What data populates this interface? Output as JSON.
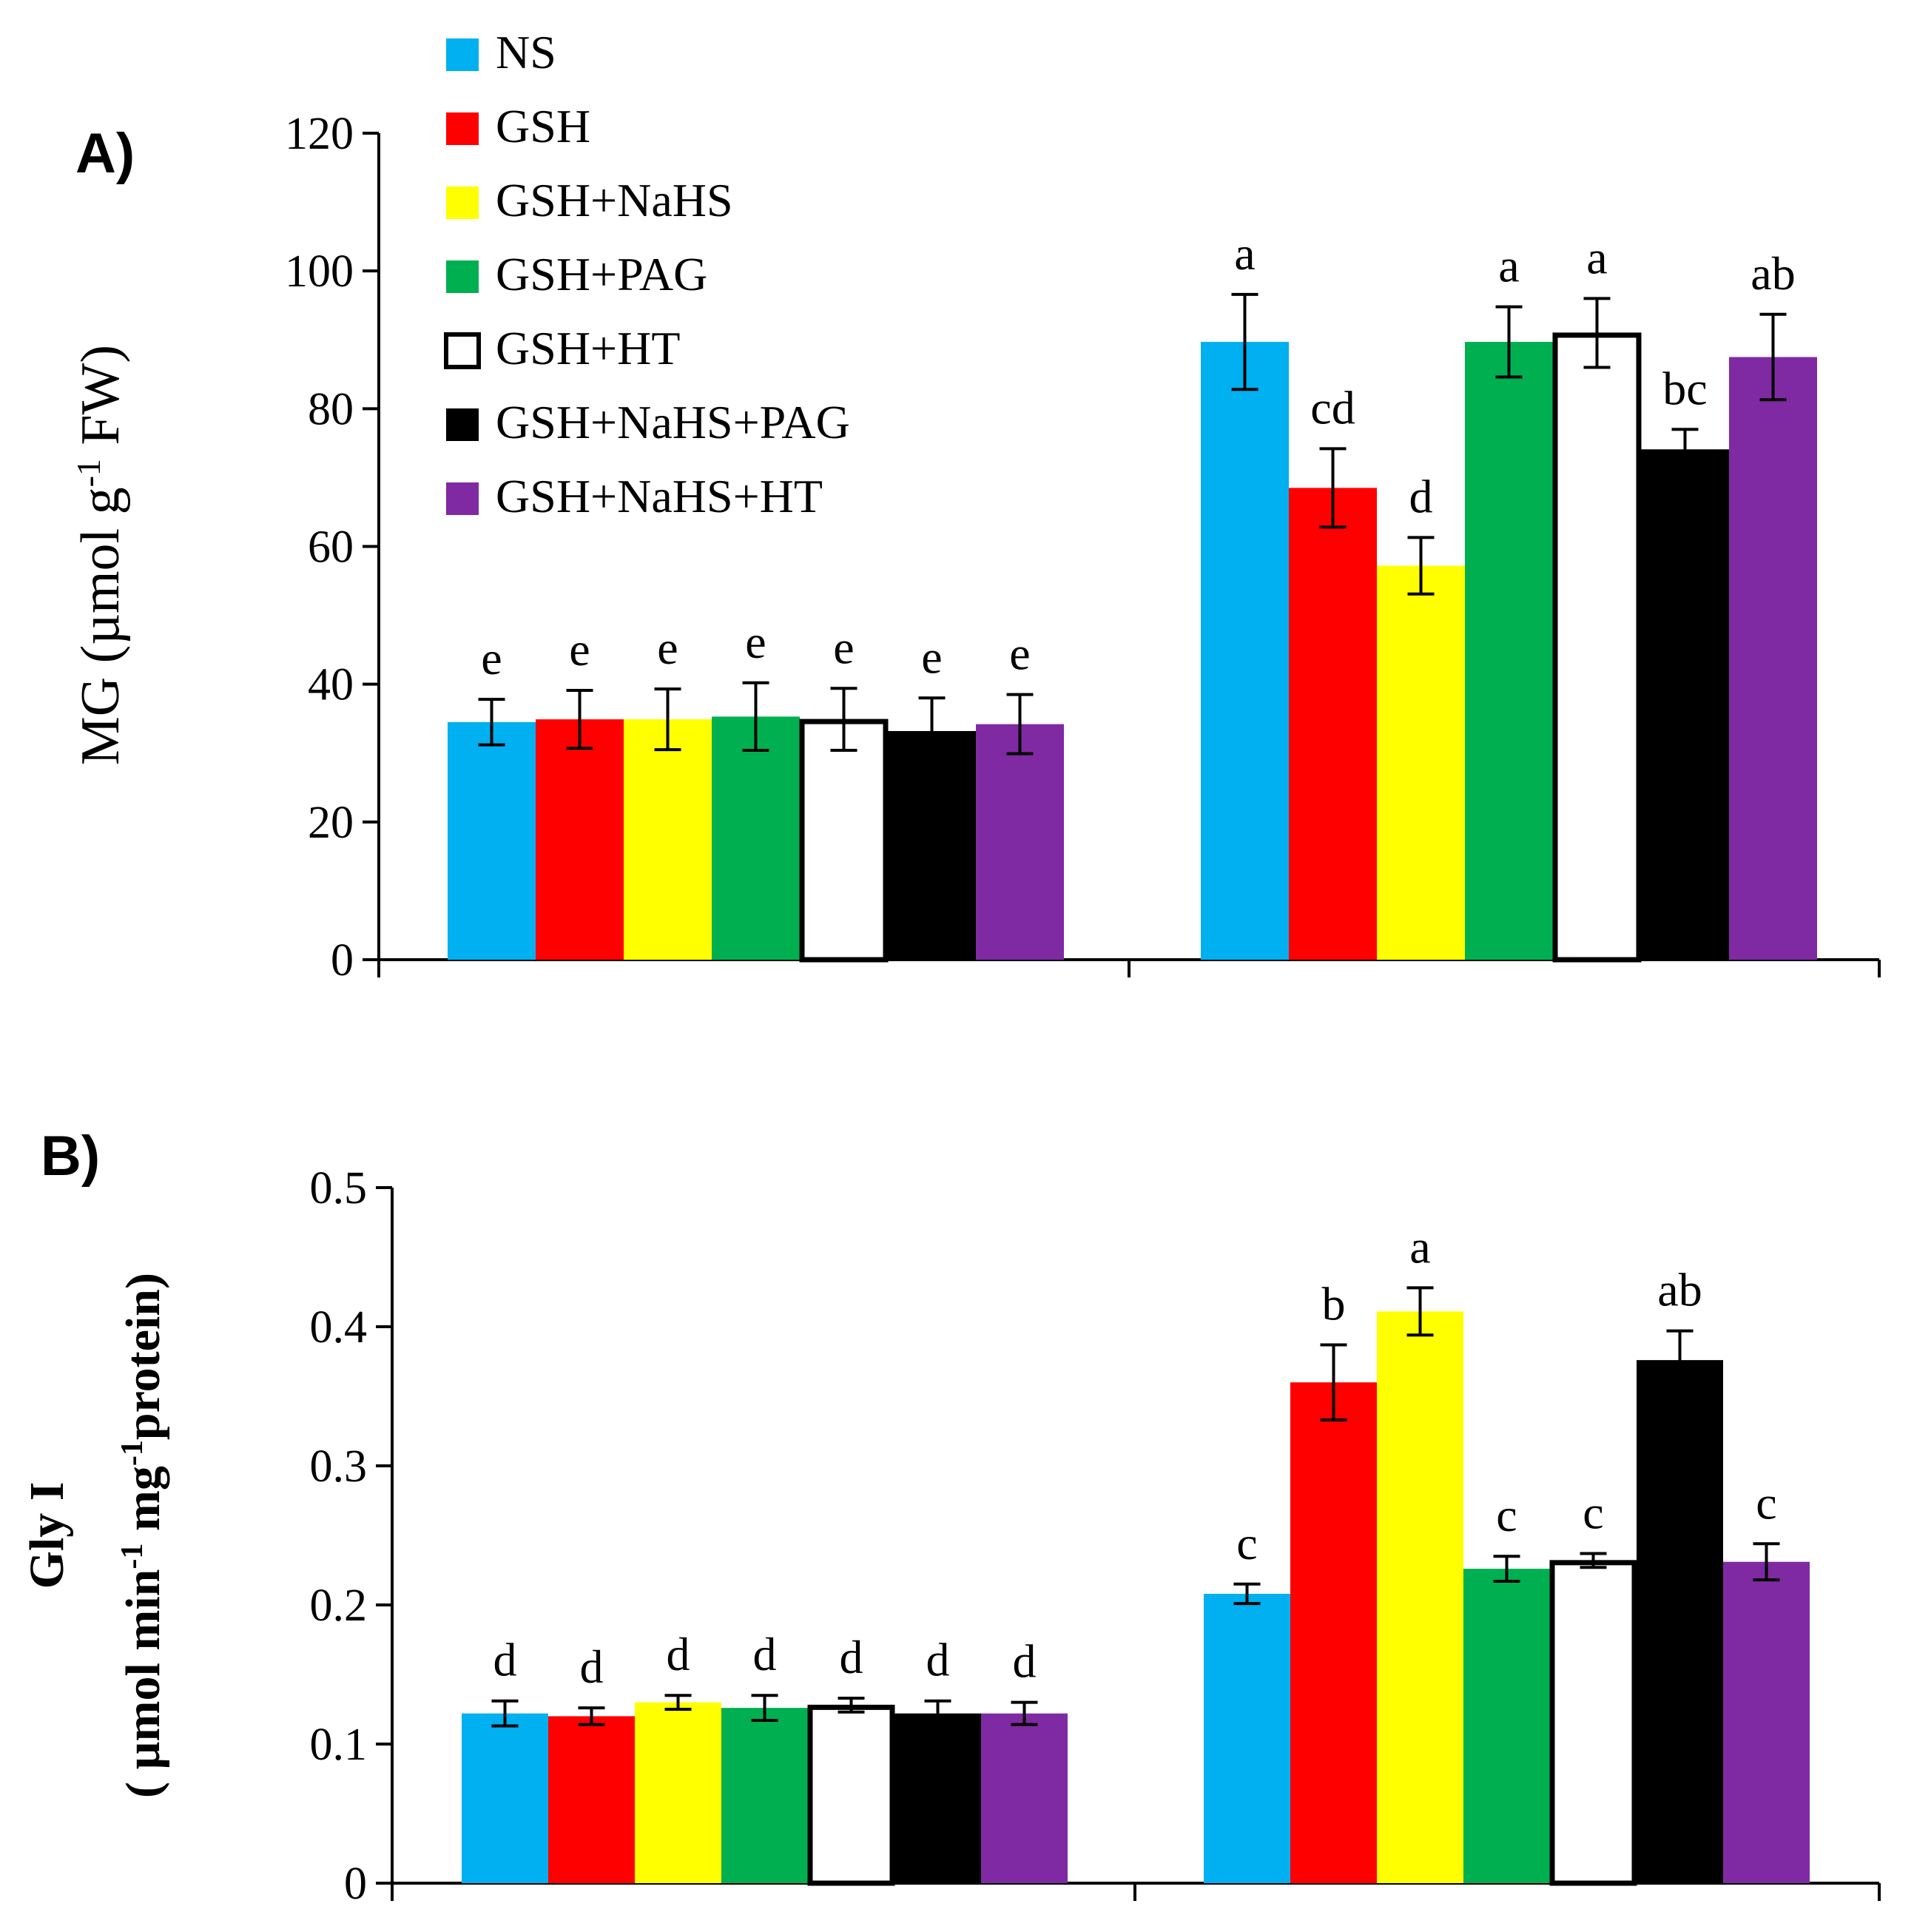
{
  "legend": [
    {
      "name": "NS",
      "color": "#00B0F0"
    },
    {
      "name": "GSH",
      "color": "#FF0000"
    },
    {
      "name": "GSH+NaHS",
      "color": "#FFFF00"
    },
    {
      "name": "GSH+PAG",
      "color": "#00B050"
    },
    {
      "name": "GSH+HT",
      "color": "#FFFFFF"
    },
    {
      "name": "GSH+NaHS+PAG",
      "color": "#000000"
    },
    {
      "name": "GSH+NaHS+HT",
      "color": "#7F2AA2"
    }
  ],
  "chart_data": [
    {
      "type": "bar",
      "panel_label": "A)",
      "title": "",
      "ylabel": "MG (µmol g-1 FW)",
      "ylabel_parts": {
        "pre": "MG (µmol g",
        "sup": "-1",
        "post": " FW)"
      },
      "ylim": [
        0,
        120
      ],
      "yticks": [
        "0",
        "20",
        "40",
        "60",
        "80",
        "100",
        "120"
      ],
      "categories": [
        "",
        ""
      ],
      "series": [
        {
          "name": "NS",
          "values": [
            34.5,
            89.7
          ],
          "errors": [
            3.3,
            6.9
          ],
          "letters": [
            "e",
            "a"
          ]
        },
        {
          "name": "GSH",
          "values": [
            34.9,
            68.5
          ],
          "errors": [
            4.2,
            5.7
          ],
          "letters": [
            "e",
            "cd"
          ]
        },
        {
          "name": "GSH+NaHS",
          "values": [
            34.9,
            57.2
          ],
          "errors": [
            4.4,
            4.1
          ],
          "letters": [
            "e",
            "d"
          ]
        },
        {
          "name": "GSH+PAG",
          "values": [
            35.3,
            89.7
          ],
          "errors": [
            4.9,
            5.1
          ],
          "letters": [
            "e",
            "a"
          ]
        },
        {
          "name": "GSH+HT",
          "values": [
            34.9,
            91.0
          ],
          "errors": [
            4.5,
            5.0
          ],
          "letters": [
            "e",
            "a"
          ]
        },
        {
          "name": "GSH+NaHS+PAG",
          "values": [
            33.2,
            74.1
          ],
          "errors": [
            4.8,
            2.9
          ],
          "letters": [
            "e",
            "bc"
          ]
        },
        {
          "name": "GSH+NaHS+HT",
          "values": [
            34.2,
            87.5
          ],
          "errors": [
            4.3,
            6.2
          ],
          "letters": [
            "e",
            "ab"
          ]
        }
      ]
    },
    {
      "type": "bar",
      "panel_label": "B)",
      "title": "",
      "ylabel": "Gly I ( µmol min-1 mg-1protein)",
      "ylabel_line1": "Gly I",
      "ylabel_parts": {
        "pre": "( µmol min",
        "sup": "-1",
        "mid": " mg",
        "sup2": "-1",
        "post": "protein)"
      },
      "ylim": [
        0,
        0.5
      ],
      "yticks": [
        "0",
        "0.1",
        "0.2",
        "0.3",
        "0.4",
        "0.5"
      ],
      "categories": [
        "",
        ""
      ],
      "series": [
        {
          "name": "NS",
          "values": [
            0.122,
            0.208
          ],
          "errors": [
            0.009,
            0.007
          ],
          "letters": [
            "d",
            "c"
          ]
        },
        {
          "name": "GSH",
          "values": [
            0.12,
            0.36
          ],
          "errors": [
            0.006,
            0.027
          ],
          "letters": [
            "d",
            "b"
          ]
        },
        {
          "name": "GSH+NaHS",
          "values": [
            0.13,
            0.411
          ],
          "errors": [
            0.005,
            0.017
          ],
          "letters": [
            "d",
            "a"
          ]
        },
        {
          "name": "GSH+PAG",
          "values": [
            0.126,
            0.226
          ],
          "errors": [
            0.009,
            0.009
          ],
          "letters": [
            "d",
            "c"
          ]
        },
        {
          "name": "GSH+HT",
          "values": [
            0.128,
            0.232
          ],
          "errors": [
            0.005,
            0.005
          ],
          "letters": [
            "d",
            "c"
          ]
        },
        {
          "name": "GSH+NaHS+PAG",
          "values": [
            0.122,
            0.376
          ],
          "errors": [
            0.009,
            0.021
          ],
          "letters": [
            "d",
            "ab"
          ]
        },
        {
          "name": "GSH+NaHS+HT",
          "values": [
            0.122,
            0.231
          ],
          "errors": [
            0.008,
            0.013
          ],
          "letters": [
            "d",
            "c"
          ]
        }
      ]
    }
  ]
}
